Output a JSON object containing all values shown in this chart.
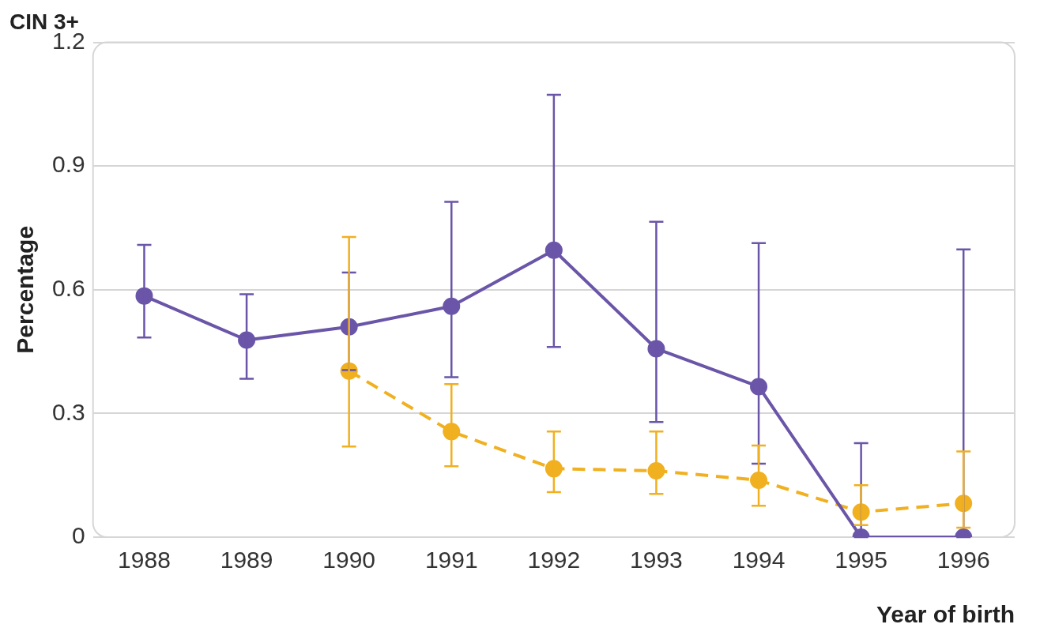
{
  "chart_data": {
    "type": "line",
    "title": "CIN 3+",
    "xlabel": "Year of birth",
    "ylabel": "Percentage",
    "categories": [
      "1988",
      "1989",
      "1990",
      "1991",
      "1992",
      "1993",
      "1994",
      "1995",
      "1996"
    ],
    "series": [
      {
        "color": "#6a55a8",
        "line_style": "solid",
        "values": [
          0.585,
          0.478,
          0.51,
          0.56,
          0.696,
          0.457,
          0.365,
          0,
          0
        ],
        "errors": [
          [
            0.484,
            0.709
          ],
          [
            0.384,
            0.589
          ],
          [
            0.405,
            0.642
          ],
          [
            0.388,
            0.813
          ],
          [
            0.461,
            1.073
          ],
          [
            0.279,
            0.765
          ],
          [
            0.178,
            0.713
          ],
          [
            0,
            0.228
          ],
          [
            0,
            0.698
          ]
        ]
      },
      {
        "color": "#f0b020",
        "line_style": "dashed",
        "values": [
          null,
          null,
          0.403,
          0.256,
          0.166,
          0.161,
          0.138,
          0.061,
          0.082
        ],
        "errors": [
          null,
          null,
          [
            0.22,
            0.728
          ],
          [
            0.172,
            0.371
          ],
          [
            0.109,
            0.256
          ],
          [
            0.105,
            0.256
          ],
          [
            0.076,
            0.222
          ],
          [
            0.029,
            0.126
          ],
          [
            0.023,
            0.208
          ]
        ]
      }
    ],
    "ylim": [
      0,
      1.2
    ],
    "yticks": [
      0,
      0.3,
      0.6,
      0.9,
      1.2
    ],
    "grid": "y",
    "legend": false,
    "marker": "circle"
  }
}
